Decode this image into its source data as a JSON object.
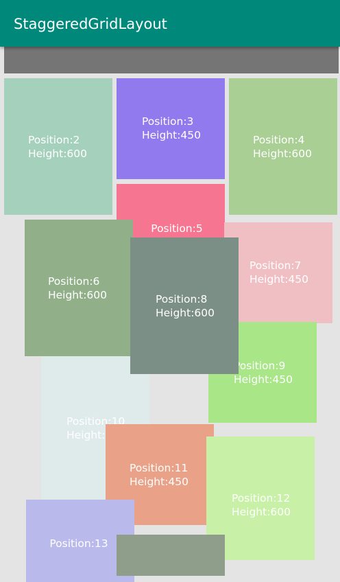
{
  "app_bar": {
    "title": "StaggeredGridLayout"
  },
  "cards": [
    {
      "id": "position-2",
      "line1": "Position:2",
      "line2": "Height:600",
      "color": "#a5d1bc"
    },
    {
      "id": "position-3",
      "line1": "Position:3",
      "line2": "Height:450",
      "color": "#9179ee"
    },
    {
      "id": "position-4",
      "line1": "Position:4",
      "line2": "Height:600",
      "color": "#a9cf94"
    },
    {
      "id": "position-5",
      "line1": "Position:5",
      "line2": "",
      "color": "#f67692"
    },
    {
      "id": "position-6",
      "line1": "Position:6",
      "line2": "Height:600",
      "color": "#91b08a"
    },
    {
      "id": "position-7",
      "line1": "Position:7",
      "line2": "Height:450",
      "color": "#f0bfc4"
    },
    {
      "id": "position-8",
      "line1": "Position:8",
      "line2": "Height:600",
      "color": "#7b8f86"
    },
    {
      "id": "position-9",
      "line1": "Position:9",
      "line2": "Height:450",
      "color": "#a8e688"
    },
    {
      "id": "position-10",
      "line1": "Position:10",
      "line2": "Height:6",
      "color": "#deebea"
    },
    {
      "id": "position-11",
      "line1": "Position:11",
      "line2": "Height:450",
      "color": "#e9a287"
    },
    {
      "id": "position-12",
      "line1": "Position:12",
      "line2": "Height:600",
      "color": "#c8f0a6"
    },
    {
      "id": "position-13",
      "line1": "Position:13",
      "line2": "",
      "color": "#b9b9eb"
    },
    {
      "id": "position-14",
      "line1": "",
      "line2": "",
      "color": "#8e9e8a"
    }
  ]
}
